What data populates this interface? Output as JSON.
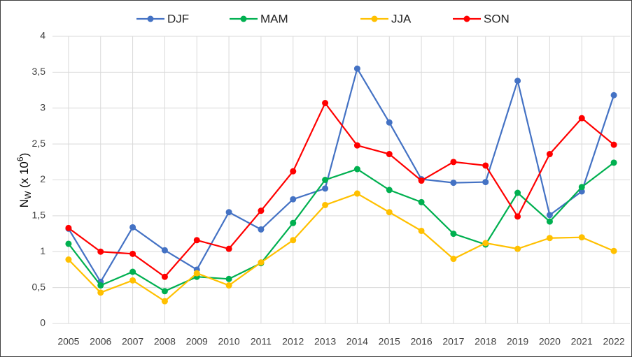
{
  "chart_data": {
    "type": "line",
    "y_label": {
      "base": "N",
      "sub": "W",
      "text": " (x 10",
      "sup": "6",
      "end": ")"
    },
    "x": [
      2005,
      2006,
      2007,
      2008,
      2009,
      2010,
      2011,
      2012,
      2013,
      2014,
      2015,
      2016,
      2017,
      2018,
      2019,
      2020,
      2021,
      2022
    ],
    "xlim": [
      2004.5,
      2022.5
    ],
    "xticks": [
      2005,
      2006,
      2007,
      2008,
      2009,
      2010,
      2011,
      2012,
      2013,
      2014,
      2015,
      2016,
      2017,
      2018,
      2019,
      2020,
      2021,
      2022
    ],
    "ylim": [
      0,
      4
    ],
    "yticks": [
      0,
      {
        "value": 0.5,
        "label": "0,5"
      },
      1,
      {
        "value": 1.5,
        "label": "1,5"
      },
      2,
      {
        "value": 2.5,
        "label": "2,5"
      },
      3,
      {
        "value": 3.5,
        "label": "3,5"
      },
      4
    ],
    "grid": true,
    "legend": "top",
    "series": [
      {
        "name": "DJF",
        "color": "#4472c4",
        "values": [
          1.32,
          0.58,
          1.34,
          1.02,
          0.75,
          1.55,
          1.31,
          1.73,
          1.88,
          3.55,
          2.8,
          2.01,
          1.96,
          1.97,
          3.38,
          1.51,
          1.84,
          3.18
        ]
      },
      {
        "name": "MAM",
        "color": "#00b050",
        "values": [
          1.11,
          0.53,
          0.72,
          0.45,
          0.65,
          0.62,
          0.84,
          1.4,
          2.0,
          2.15,
          1.86,
          1.69,
          1.25,
          1.1,
          1.82,
          1.42,
          1.9,
          2.24
        ]
      },
      {
        "name": "JJA",
        "color": "#ffc000",
        "values": [
          0.89,
          0.43,
          0.6,
          0.31,
          0.7,
          0.53,
          0.85,
          1.16,
          1.65,
          1.81,
          1.55,
          1.29,
          0.9,
          1.12,
          1.04,
          1.19,
          1.2,
          1.01
        ]
      },
      {
        "name": "SON",
        "color": "#ff0000",
        "values": [
          1.33,
          1.0,
          0.97,
          0.65,
          1.16,
          1.04,
          1.57,
          2.12,
          3.07,
          2.48,
          2.36,
          1.99,
          2.25,
          2.2,
          1.49,
          2.36,
          2.86,
          2.49
        ]
      }
    ]
  }
}
